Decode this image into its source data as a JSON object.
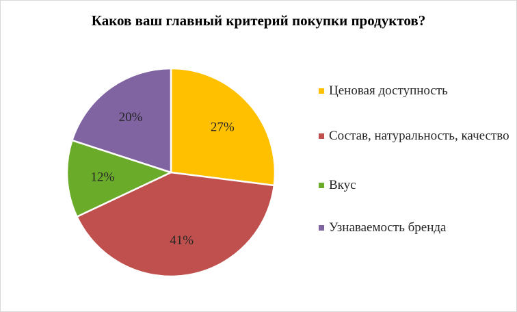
{
  "chart_data": {
    "type": "pie",
    "title": "Каков ваш главный критерий покупки продуктов?",
    "slices": [
      {
        "label": "Ценовая доступность",
        "value": 27,
        "value_label": "27%",
        "color": "#FFC000"
      },
      {
        "label": "Состав, натуральность, качество",
        "value": 41,
        "value_label": "41%",
        "color": "#C0504D"
      },
      {
        "label": "Вкус",
        "value": 12,
        "value_label": "12%",
        "color": "#6BAB2A"
      },
      {
        "label": "Узнаваемость бренда",
        "value": 20,
        "value_label": "20%",
        "color": "#8064A2"
      }
    ],
    "legend_position": "right",
    "start_angle": "12 o'clock, clockwise"
  }
}
